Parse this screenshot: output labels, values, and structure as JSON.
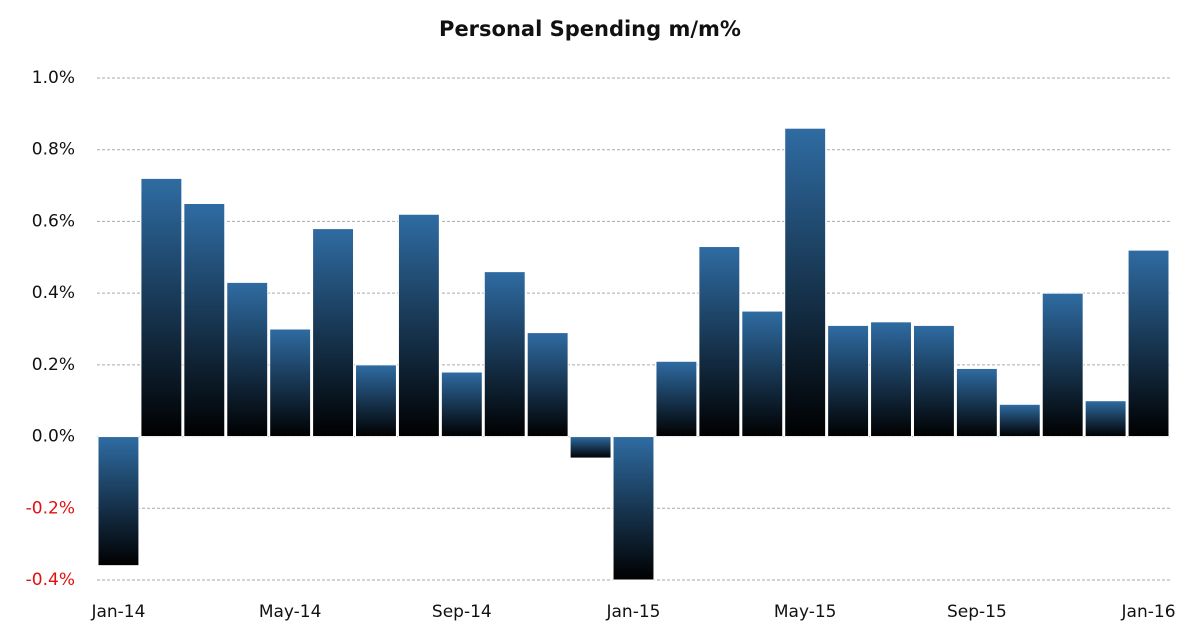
{
  "chart_data": {
    "type": "bar",
    "title": "Personal Spending m/m%",
    "categories": [
      "Jan-14",
      null,
      null,
      null,
      "May-14",
      null,
      null,
      null,
      "Sep-14",
      null,
      null,
      null,
      "Jan-15",
      null,
      null,
      null,
      "May-15",
      null,
      null,
      null,
      "Sep-15",
      null,
      null,
      null,
      "Jan-16"
    ],
    "values": [
      -0.36,
      0.72,
      0.65,
      0.43,
      0.3,
      0.58,
      0.2,
      0.62,
      0.18,
      0.46,
      0.29,
      -0.06,
      -0.4,
      0.21,
      0.53,
      0.35,
      0.86,
      0.31,
      0.32,
      0.31,
      0.19,
      0.09,
      0.4,
      0.1,
      0.52
    ],
    "color": "#2f6ca3",
    "ylim": [
      -0.4,
      1.0
    ],
    "yticks": [
      {
        "value": -0.4,
        "label": "-0.4%"
      },
      {
        "value": -0.2,
        "label": "-0.2%"
      },
      {
        "value": 0,
        "label": "0.0%"
      },
      {
        "value": 0.2,
        "label": "0.2%"
      },
      {
        "value": 0.4,
        "label": "0.4%"
      },
      {
        "value": 0.6,
        "label": "0.6%"
      },
      {
        "value": 0.8,
        "label": "0.8%"
      },
      {
        "value": 1.0,
        "label": "1.0%"
      }
    ],
    "grid": true,
    "negative_tick_color": "#e01010"
  }
}
